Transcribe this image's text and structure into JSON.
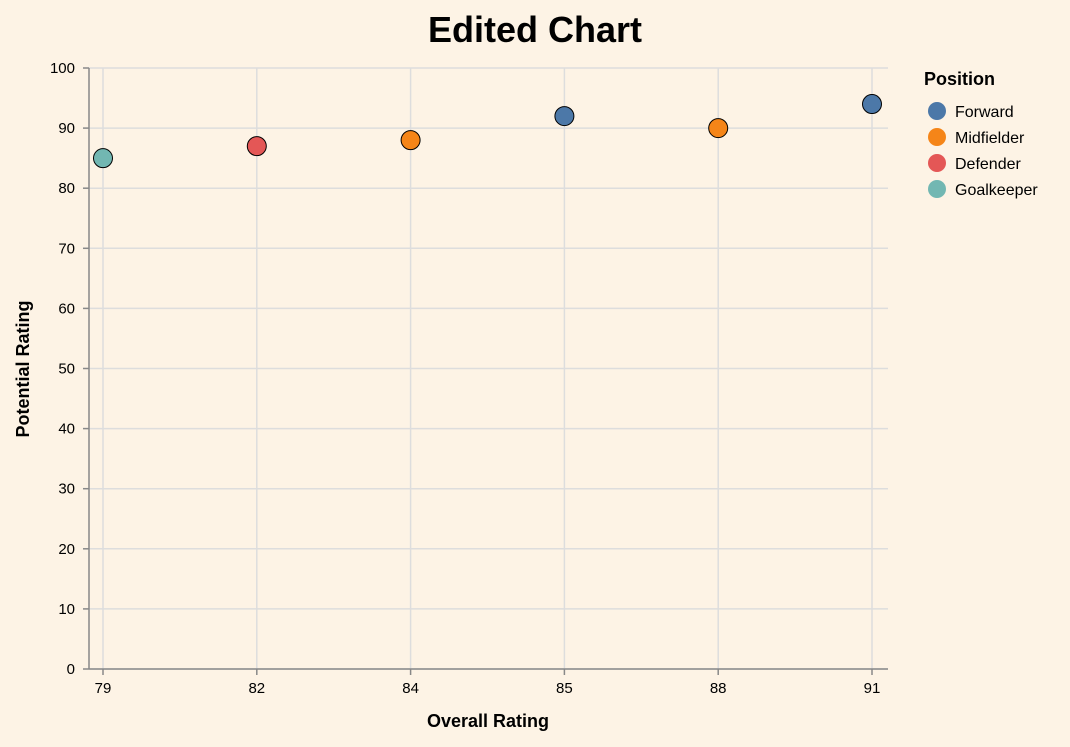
{
  "chart_data": {
    "type": "scatter",
    "title": "Edited Chart",
    "xlabel": "Overall Rating",
    "ylabel": "Potential Rating",
    "x_categories": [
      "79",
      "82",
      "84",
      "85",
      "88",
      "91"
    ],
    "ylim": [
      0,
      100
    ],
    "y_ticks": [
      "0",
      "10",
      "20",
      "30",
      "40",
      "50",
      "60",
      "70",
      "80",
      "90",
      "100"
    ],
    "grid": true,
    "legend": {
      "title": "Position",
      "placement": "right"
    },
    "series": [
      {
        "name": "Forward",
        "color": "#4c78a8",
        "points": [
          {
            "x": "85",
            "y": 92
          },
          {
            "x": "91",
            "y": 94
          }
        ]
      },
      {
        "name": "Midfielder",
        "color": "#f58518",
        "points": [
          {
            "x": "84",
            "y": 88
          },
          {
            "x": "88",
            "y": 90
          }
        ]
      },
      {
        "name": "Defender",
        "color": "#e45756",
        "points": [
          {
            "x": "82",
            "y": 87
          }
        ]
      },
      {
        "name": "Goalkeeper",
        "color": "#72b7b2",
        "points": [
          {
            "x": "79",
            "y": 85
          }
        ]
      }
    ]
  }
}
